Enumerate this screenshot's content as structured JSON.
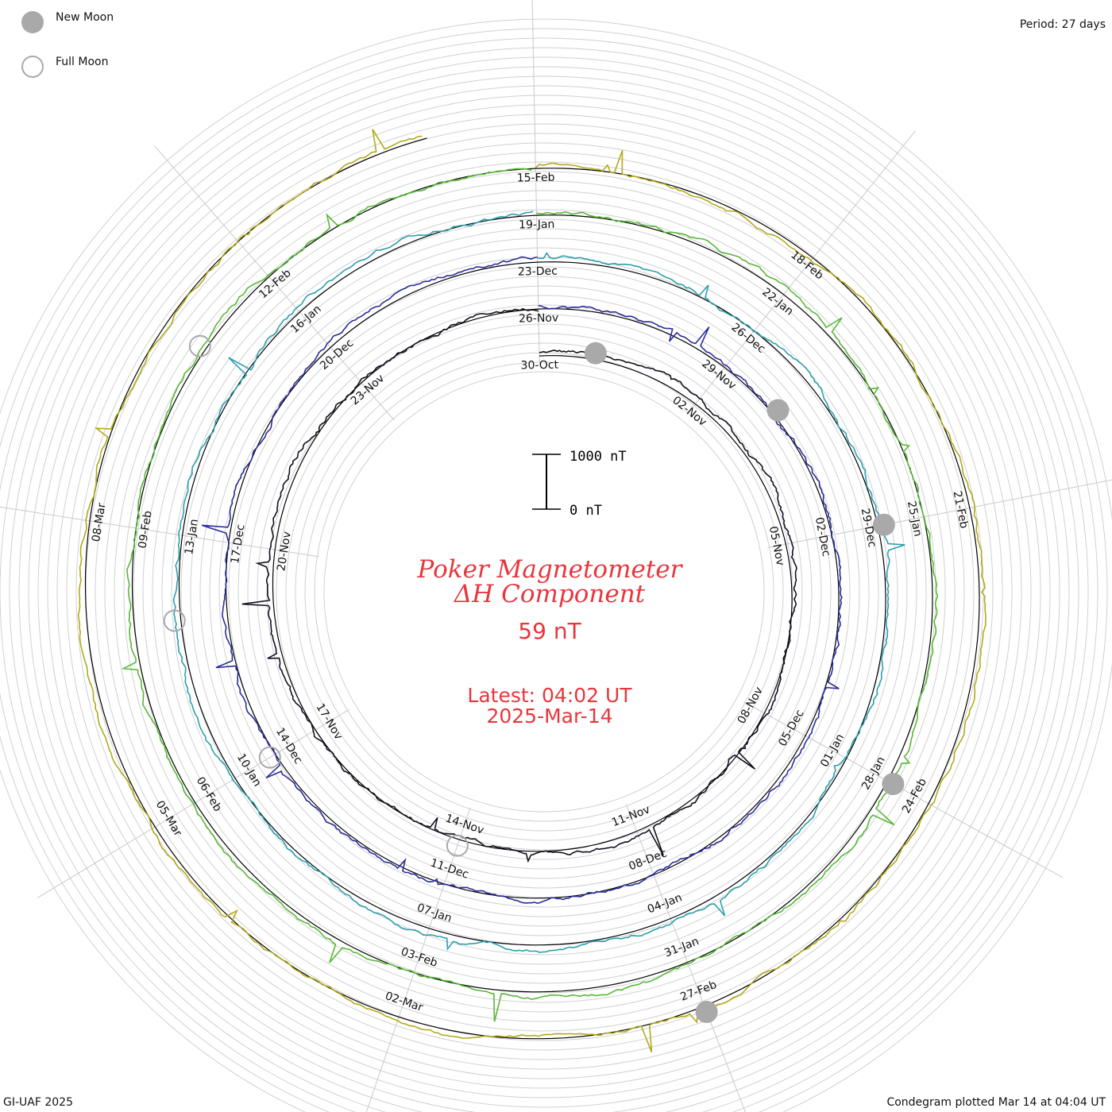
{
  "header": {
    "period": "Period: 27 days"
  },
  "legend": {
    "new_moon_label": "New Moon",
    "full_moon_label": "Full Moon",
    "moon_fill_color": "#a9a9a9",
    "moon_ring_color": "#a9a9a9"
  },
  "center": {
    "title_line1": "Poker Magnetometer",
    "title_line2": "ΔH Component",
    "current_value": "59 nT",
    "latest_time": "Latest: 04:02 UT",
    "latest_date": "2025-Mar-14",
    "text_color": "#e8363c",
    "scale_top_label": "1000 nT",
    "scale_bottom_label": "0 nT"
  },
  "footer": {
    "left": "GI-UAF 2025",
    "right": "Condegram plotted Mar 14 at 04:04 UT"
  },
  "chart_data": {
    "type": "line",
    "subtype": "condegram-spiral",
    "title": "Poker Magnetometer ΔH Component",
    "period_days": 27,
    "scale_nT": [
      0,
      1000
    ],
    "grid": true,
    "date_labels": [
      "30-Oct",
      "02-Nov",
      "05-Nov",
      "08-Nov",
      "11-Nov",
      "14-Nov",
      "17-Nov",
      "20-Nov",
      "23-Nov",
      "26-Nov",
      "29-Nov",
      "02-Dec",
      "05-Dec",
      "08-Dec",
      "11-Dec",
      "14-Dec",
      "17-Dec",
      "20-Dec",
      "23-Dec",
      "26-Dec",
      "29-Dec",
      "01-Jan",
      "04-Jan",
      "07-Jan",
      "10-Jan",
      "13-Jan",
      "16-Jan",
      "19-Jan",
      "22-Jan",
      "25-Jan",
      "28-Jan",
      "31-Jan",
      "03-Feb",
      "06-Feb",
      "09-Feb",
      "12-Feb",
      "15-Feb",
      "18-Feb",
      "21-Feb",
      "24-Feb",
      "27-Feb",
      "02-Mar",
      "05-Mar",
      "08-Mar"
    ],
    "series": [
      {
        "color": "#121020"
      },
      {
        "color": "#2a2d9a"
      },
      {
        "color": "#2c9fae"
      },
      {
        "color": "#57b836"
      },
      {
        "color": "#b3a91b"
      },
      {
        "color": "#c2841c"
      },
      {
        "color": "#b1231d"
      }
    ],
    "events": [
      {
        "type": "new_moon",
        "date": "01-Nov"
      },
      {
        "type": "full_moon",
        "date": "15-Nov"
      },
      {
        "type": "new_moon",
        "date": "01-Dec"
      },
      {
        "type": "full_moon",
        "date": "15-Dec"
      },
      {
        "type": "new_moon",
        "date": "30-Dec"
      },
      {
        "type": "full_moon",
        "date": "13-Jan"
      },
      {
        "type": "new_moon",
        "date": "29-Jan"
      },
      {
        "type": "full_moon",
        "date": "12-Feb"
      },
      {
        "type": "new_moon",
        "date": "28-Feb"
      }
    ]
  }
}
